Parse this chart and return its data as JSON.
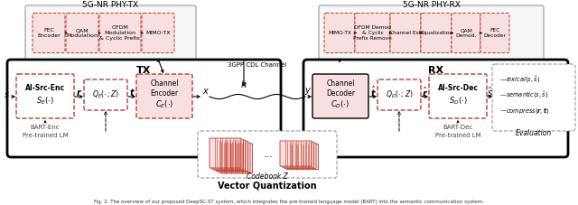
{
  "bg_color": "#ffffff",
  "tx_phy_label": "5G-NR PHY-TX",
  "rx_phy_label": "5G-NR PHY-RX",
  "tx_label": "TX",
  "rx_label": "RX",
  "channel_label": "3GPP CDL Channel",
  "codebook_label": "Codebook Z",
  "vq_label": "Vector Quantization",
  "bart_enc_label": "BART-Enc\nPre-trained LM",
  "bart_dec_label": "BART-Dec\nPre-trained LM",
  "eval_label": "Evaluation",
  "pink_fill": "#f9e0e0",
  "red_edge": "#c0392b",
  "gray_edge": "#999999",
  "black": "#000000",
  "tx_phy_boxes": [
    "FEC\nEncoder",
    "QAM\nModulation",
    "OFDM\nModulation\n& Cyclic Prefix",
    "MIMO-TX"
  ],
  "rx_phy_boxes": [
    "MIMO-TX",
    "OFDM Demod\n& Cyclic Prefix\nRemove",
    "Channel Est.",
    "Equalization",
    "QAM\nDemod.",
    "FEC\nDecoder"
  ]
}
